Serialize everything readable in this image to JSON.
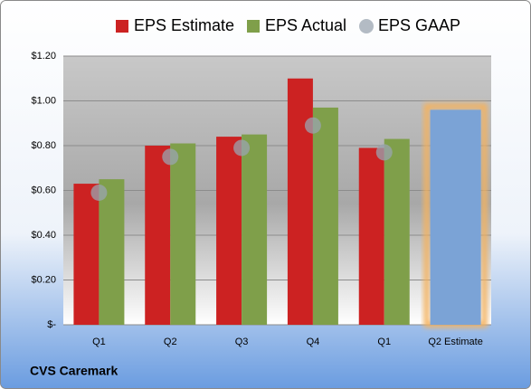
{
  "chart_data": {
    "type": "bar",
    "footer": "CVS Caremark",
    "categories": [
      "Q1",
      "Q2",
      "Q3",
      "Q4",
      "Q1",
      "Q2 Estimate"
    ],
    "series": [
      {
        "name": "EPS Estimate",
        "color": "#cc2222",
        "marker": "bar",
        "values": [
          0.63,
          0.8,
          0.84,
          1.1,
          0.79,
          null
        ]
      },
      {
        "name": "EPS Actual",
        "color": "#7f9f4a",
        "marker": "bar",
        "values": [
          0.65,
          0.81,
          0.85,
          0.97,
          0.83,
          null
        ]
      },
      {
        "name": "EPS GAAP",
        "color": "#9aa4b0",
        "marker": "circle",
        "values": [
          0.59,
          0.75,
          0.79,
          0.89,
          0.77,
          null
        ]
      }
    ],
    "projection": {
      "color": "#7ba3d6",
      "glow": "#f4b25e",
      "values": [
        null,
        null,
        null,
        null,
        null,
        0.96
      ]
    },
    "ylim": [
      0,
      1.2
    ],
    "yticks": [
      {
        "value": 0,
        "label": "$-"
      },
      {
        "value": 0.2,
        "label": "$0.20"
      },
      {
        "value": 0.4,
        "label": "$0.40"
      },
      {
        "value": 0.6,
        "label": "$0.60"
      },
      {
        "value": 0.8,
        "label": "$0.80"
      },
      {
        "value": 1.0,
        "label": "$1.00"
      },
      {
        "value": 1.2,
        "label": "$1.20"
      }
    ],
    "grid": true
  }
}
